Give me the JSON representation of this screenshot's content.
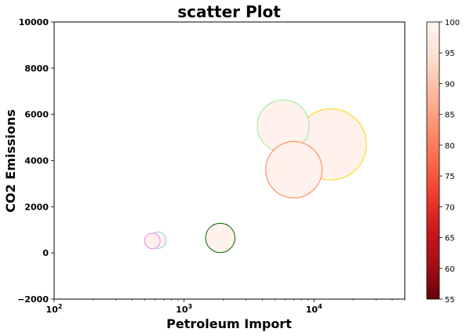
{
  "chart_data": {
    "type": "scatter",
    "title": "scatter Plot",
    "xlabel": "Petroleum Import",
    "ylabel": "CO2 Emissions",
    "xscale": "log",
    "xlim": [
      100,
      50000
    ],
    "ylim": [
      -2000,
      10000
    ],
    "x_ticks": [
      {
        "value": 100,
        "base": "10",
        "exp": "2"
      },
      {
        "value": 1000,
        "base": "10",
        "exp": "3"
      },
      {
        "value": 10000,
        "base": "10",
        "exp": "4"
      }
    ],
    "y_ticks": [
      {
        "value": -2000,
        "label": "−2000"
      },
      {
        "value": 0,
        "label": "0"
      },
      {
        "value": 2000,
        "label": "2000"
      },
      {
        "value": 4000,
        "label": "4000"
      },
      {
        "value": 6000,
        "label": "6000"
      },
      {
        "value": 8000,
        "label": "8000"
      },
      {
        "value": 10000,
        "label": "10000"
      }
    ],
    "colorbar": {
      "colormap": "Reds_r",
      "range": [
        55,
        100
      ],
      "ticks": [
        "55",
        "60",
        "65",
        "70",
        "75",
        "80",
        "85",
        "90",
        "95",
        "100"
      ]
    },
    "points": [
      {
        "x": 13500,
        "y": 4700,
        "size": 3350,
        "value": 99,
        "edge_color": "#ffd700"
      },
      {
        "x": 5800,
        "y": 5500,
        "size": 1790,
        "value": 99,
        "edge_color": "#90ee90"
      },
      {
        "x": 7000,
        "y": 3600,
        "size": 2100,
        "value": 99,
        "edge_color": "#ff7f50"
      },
      {
        "x": 1900,
        "y": 650,
        "size": 570,
        "value": 99,
        "edge_color": "#006400"
      },
      {
        "x": 630,
        "y": 550,
        "size": 180,
        "value": 99,
        "edge_color": "#87cefa"
      },
      {
        "x": 570,
        "y": 520,
        "size": 160,
        "value": 99,
        "edge_color": "#ee82ee"
      }
    ],
    "grid": false,
    "legend": "none"
  }
}
